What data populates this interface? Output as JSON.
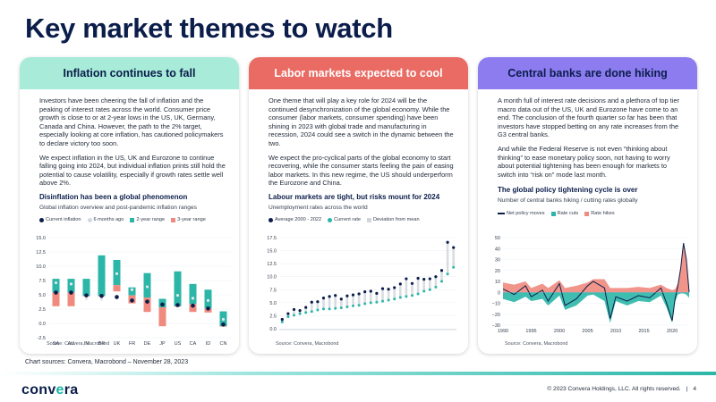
{
  "page": {
    "title": "Key market themes to watch"
  },
  "colors": {
    "navy": "#0b1d4a",
    "teal": "#2bb6a8",
    "mint": "#a7ebd8",
    "coral": "#e96b63",
    "salmon": "#f08a7e",
    "purple": "#8c7cf0"
  },
  "cards": [
    {
      "header": "Inflation continues to fall",
      "paragraphs": [
        "Investors have been cheering the fall of inflation and the peaking of interest rates across the world. Consumer price growth is close to or at 2-year lows in the US, UK, Germany, Canada and China. However, the path to the 2% target, especially looking at core inflation, has cautioned policymakers to declare victory too soon.",
        "We expect inflation in the US, UK and Eurozone to continue falling going into 2024, but individual inflation prints still hold the potential to cause volatility, especially if growth rates settle well above 2%."
      ],
      "chart_title": "Disinflation has been a global phenomenon",
      "chart_sub": "Global inflation overview and post-pandemic inflation ranges",
      "legend": [
        "Current inflation",
        "6 months ago",
        "2-year range",
        "3-year range"
      ],
      "source": "Source: Convera, Macrobond"
    },
    {
      "header": "Labor markets expected to cool",
      "paragraphs": [
        "One theme that will play a key role for 2024 will be the continued desynchronization of the global economy. While the consumer (labor markets, consumer spending) have been shining in 2023 with global trade and manufacturing in recession, 2024 could see a switch in the dynamic between the two.",
        "We expect the pro-cyclical parts of the global economy to start recovering, while the consumer starts feeling the pain of easing labor markets. In this new regime, the US should underperform the Eurozone and China."
      ],
      "chart_title": "Labour markets are tight, but risks mount for 2024",
      "chart_sub": "Unemployment rates across the world",
      "legend": [
        "Average 2000 - 2022",
        "Current rate",
        "Deviation from mean"
      ],
      "source": "Source: Convera, Macrobond"
    },
    {
      "header": "Central banks are done hiking",
      "paragraphs": [
        "A month full of interest rate decisions and a plethora of top tier macro data out of the US, UK and Eurozone have come to an end. The conclusion of the fourth quarter so far has been that investors have stopped betting on any rate increases from the G3 central banks.",
        "And while the Federal Reserve is not even “thinking about thinking” to ease monetary policy soon, not having to worry about potential tightening has been enough for markets to switch into “risk on” mode last month."
      ],
      "chart_title": "The global policy tightening cycle is over",
      "chart_sub": "Number of central banks hiking / cutting rates globally",
      "legend": [
        "Net policy moves",
        "Rate cuts",
        "Rate hikes"
      ],
      "source": "Source: Convera, Macrobond"
    }
  ],
  "chart_data": [
    {
      "type": "bar",
      "title": "Disinflation has been a global phenomenon",
      "subtitle": "Global inflation overview and post-pandemic inflation ranges",
      "categories": [
        "SA",
        "AU",
        "IN",
        "BR",
        "UK",
        "FR",
        "DE",
        "JP",
        "US",
        "CA",
        "ID",
        "CN"
      ],
      "ylim": [
        -2.5,
        15.0
      ],
      "yticks": [
        "15.0",
        "12.5",
        "10.0",
        "7.5",
        "5.0",
        "2.5",
        "0.0",
        "-2.5"
      ],
      "ytick_values": [
        15.0,
        12.5,
        10.0,
        7.5,
        5.0,
        2.5,
        0.0,
        -2.5
      ],
      "range_2y": [
        [
          5.4,
          7.8
        ],
        [
          5.4,
          7.8
        ],
        [
          4.8,
          7.8
        ],
        [
          4.8,
          11.9
        ],
        [
          6.7,
          11.1
        ],
        [
          4.9,
          6.3
        ],
        [
          4.5,
          8.8
        ],
        [
          2.8,
          4.3
        ],
        [
          3.0,
          9.1
        ],
        [
          3.4,
          6.9
        ],
        [
          2.6,
          5.9
        ],
        [
          -0.5,
          2.1
        ]
      ],
      "range_3y": [
        [
          3.0,
          5.4
        ],
        [
          3.0,
          5.4
        ],
        [
          4.8,
          4.8
        ],
        [
          4.8,
          4.8
        ],
        [
          5.6,
          6.7
        ],
        [
          3.5,
          4.9
        ],
        [
          2.0,
          4.5
        ],
        [
          -0.5,
          2.8
        ],
        [
          3.0,
          3.0
        ],
        [
          2.0,
          3.4
        ],
        [
          1.9,
          2.6
        ],
        [
          -0.5,
          -0.5
        ]
      ],
      "current": [
        5.4,
        5.4,
        4.9,
        4.8,
        4.6,
        4.0,
        3.8,
        3.3,
        3.2,
        3.1,
        2.6,
        -0.2
      ],
      "six_months_ago": [
        7.1,
        6.9,
        4.3,
        4.2,
        8.7,
        5.9,
        6.4,
        3.3,
        4.9,
        4.4,
        4.0,
        0.7
      ]
    },
    {
      "type": "scatter",
      "title": "Labour markets are tight, but risks mount for 2024",
      "subtitle": "Unemployment rates across the world",
      "ylim": [
        0,
        17.5
      ],
      "yticks": [
        "17.5",
        "15.0",
        "12.5",
        "10.0",
        "7.5",
        "5.0",
        "2.5",
        "0.0"
      ],
      "ytick_values": [
        17.5,
        15.0,
        12.5,
        10.0,
        7.5,
        5.0,
        2.5,
        0.0
      ],
      "series": [
        {
          "name": "Average 2000 - 2022",
          "values": [
            1.8,
            2.9,
            3.7,
            3.5,
            4.1,
            5.1,
            5.2,
            5.9,
            6.2,
            6.4,
            5.7,
            6.3,
            6.5,
            6.7,
            7.1,
            7.2,
            6.8,
            7.7,
            7.6,
            7.9,
            8.6,
            9.6,
            8.7,
            9.7,
            9.5,
            9.6,
            10.0,
            11.2,
            16.6,
            15.6
          ]
        },
        {
          "name": "Current rate",
          "values": [
            1.3,
            2.3,
            2.6,
            2.9,
            3.1,
            3.3,
            3.6,
            3.8,
            3.8,
            3.9,
            4.0,
            4.2,
            4.4,
            4.5,
            4.8,
            5.0,
            5.1,
            5.3,
            5.5,
            5.7,
            6.0,
            6.2,
            6.4,
            6.7,
            7.2,
            7.5,
            8.0,
            9.1,
            10.5,
            11.8
          ]
        }
      ]
    },
    {
      "type": "area",
      "title": "The global policy tightening cycle is over",
      "subtitle": "Number of central banks hiking / cutting rates globally",
      "xlim": [
        1990,
        2023
      ],
      "xticks": [
        "1990",
        "1995",
        "2000",
        "2005",
        "2010",
        "2015",
        "2020"
      ],
      "xtick_values": [
        1990,
        1995,
        2000,
        2005,
        2010,
        2015,
        2020
      ],
      "ylim": [
        -30,
        50
      ],
      "yticks": [
        "50",
        "40",
        "30",
        "20",
        "10",
        "0",
        "−10",
        "−20",
        "−30"
      ],
      "ytick_values": [
        50,
        40,
        30,
        20,
        10,
        0,
        -10,
        -20,
        -30
      ],
      "series": [
        {
          "name": "Net policy moves",
          "x": [
            1990,
            1992,
            1994,
            1995,
            1997,
            1998,
            2000,
            2001,
            2003,
            2005,
            2006,
            2008,
            2009,
            2010,
            2012,
            2014,
            2016,
            2018,
            2019,
            2020,
            2020.5,
            2021,
            2021.5,
            2022,
            2022.5,
            2023
          ],
          "values": [
            3,
            -2,
            6,
            -4,
            2,
            -8,
            8,
            -12,
            -6,
            6,
            10,
            4,
            -24,
            -4,
            -8,
            -3,
            -5,
            4,
            -10,
            -26,
            -6,
            6,
            22,
            45,
            30,
            0
          ]
        },
        {
          "name": "Rate cuts",
          "x": [
            1990,
            1992,
            1994,
            1995,
            1997,
            1998,
            2000,
            2001,
            2003,
            2005,
            2006,
            2008,
            2009,
            2010,
            2012,
            2014,
            2016,
            2018,
            2019,
            2020,
            2020.5,
            2021,
            2021.5,
            2022,
            2022.5,
            2023
          ],
          "values": [
            -6,
            -9,
            -4,
            -8,
            -6,
            -12,
            -3,
            -16,
            -12,
            -3,
            -2,
            -8,
            -28,
            -8,
            -12,
            -8,
            -9,
            -3,
            -14,
            -28,
            -9,
            -2,
            -1,
            -1,
            -2,
            -5
          ]
        },
        {
          "name": "Rate hikes",
          "x": [
            1990,
            1992,
            1994,
            1995,
            1997,
            1998,
            2000,
            2001,
            2003,
            2005,
            2006,
            2008,
            2009,
            2010,
            2012,
            2014,
            2016,
            2018,
            2019,
            2020,
            2020.5,
            2021,
            2021.5,
            2022,
            2022.5,
            2023
          ],
          "values": [
            9,
            7,
            10,
            4,
            8,
            4,
            11,
            4,
            6,
            9,
            12,
            12,
            4,
            4,
            4,
            5,
            4,
            7,
            4,
            2,
            3,
            8,
            23,
            46,
            32,
            5
          ]
        }
      ]
    }
  ],
  "footer": {
    "chart_sources": "Chart sources: Convera, Macrobond – November 28, 2023",
    "logo_main": "conv",
    "logo_accent": "e",
    "logo_tail": "ra",
    "copyright": "© 2023 Convera Holdings, LLC. All rights reserved.",
    "separator": "|",
    "page_number": "4"
  }
}
